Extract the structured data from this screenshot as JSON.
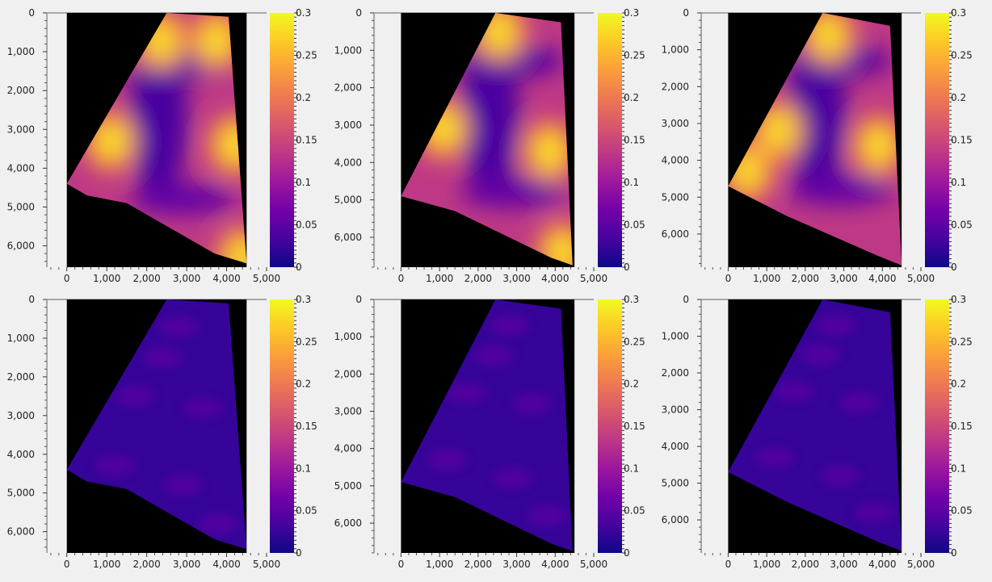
{
  "figure": {
    "colormap": "plasma",
    "frame_color": "#a8a8a8",
    "background_color": "#f0f0f0",
    "masked_color": "#000000",
    "grid": false
  },
  "chart_data": [
    {
      "type": "heatmap",
      "row": 1,
      "col": 1,
      "xlim": [
        -500,
        5000
      ],
      "ylim": [
        6550,
        0
      ],
      "x_ticks": [
        "0",
        "1,000",
        "2,000",
        "3,000",
        "4,000",
        "5,000"
      ],
      "x_tick_values": [
        0,
        1000,
        2000,
        3000,
        4000,
        5000
      ],
      "y_ticks": [
        "0",
        "1,000",
        "2,000",
        "3,000",
        "4,000",
        "5,000",
        "6,000"
      ],
      "y_tick_values": [
        0,
        1000,
        2000,
        3000,
        4000,
        5000,
        6000
      ],
      "colorbar": {
        "min": 0,
        "max": 0.3,
        "ticks": [
          "0",
          "0.05",
          "0.1",
          "0.15",
          "0.2",
          "0.25",
          "0.3"
        ],
        "tick_values": [
          0,
          0.05,
          0.1,
          0.15,
          0.2,
          0.25,
          0.3
        ]
      },
      "region_outline": [
        [
          2500,
          0
        ],
        [
          4050,
          100
        ],
        [
          4500,
          6450
        ],
        [
          3700,
          6200
        ],
        [
          1500,
          4900
        ],
        [
          500,
          4700
        ],
        [
          0,
          4400
        ]
      ],
      "intensity_level": "high",
      "hot_spots": [
        [
          2350,
          700
        ],
        [
          3750,
          700
        ],
        [
          1100,
          3300
        ],
        [
          4200,
          3400
        ],
        [
          4400,
          6300
        ]
      ]
    },
    {
      "type": "heatmap",
      "row": 1,
      "col": 2,
      "xlim": [
        -700,
        5000
      ],
      "ylim": [
        6800,
        0
      ],
      "x_ticks": [
        "0",
        "1,000",
        "2,000",
        "3,000",
        "4,000",
        "5,000"
      ],
      "x_tick_values": [
        0,
        1000,
        2000,
        3000,
        4000,
        5000
      ],
      "y_ticks": [
        "0",
        "1,000",
        "2,000",
        "3,000",
        "4,000",
        "5,000",
        "6,000"
      ],
      "y_tick_values": [
        0,
        1000,
        2000,
        3000,
        4000,
        5000,
        6000
      ],
      "colorbar": {
        "min": 0,
        "max": 0.3,
        "ticks": [
          "0",
          "0.05",
          "0.1",
          "0.15",
          "0.2",
          "0.25",
          "0.3"
        ],
        "tick_values": [
          0,
          0.05,
          0.1,
          0.15,
          0.2,
          0.25,
          0.3
        ]
      },
      "region_outline": [
        [
          2450,
          0
        ],
        [
          4150,
          250
        ],
        [
          4450,
          6750
        ],
        [
          3900,
          6550
        ],
        [
          1400,
          5300
        ],
        [
          0,
          4900
        ]
      ],
      "intensity_level": "high",
      "hot_spots": [
        [
          2550,
          500
        ],
        [
          1100,
          3100
        ],
        [
          3850,
          3700
        ],
        [
          4200,
          6400
        ]
      ]
    },
    {
      "type": "heatmap",
      "row": 1,
      "col": 3,
      "xlim": [
        -700,
        5000
      ],
      "ylim": [
        6900,
        0
      ],
      "x_ticks": [
        "0",
        "1,000",
        "2,000",
        "3,000",
        "4,000",
        "5,000"
      ],
      "x_tick_values": [
        0,
        1000,
        2000,
        3000,
        4000,
        5000
      ],
      "y_ticks": [
        "0",
        "1,000",
        "2,000",
        "3,000",
        "4,000",
        "5,000",
        "6,000"
      ],
      "y_tick_values": [
        0,
        1000,
        2000,
        3000,
        4000,
        5000,
        6000
      ],
      "colorbar": {
        "min": 0,
        "max": 0.3,
        "ticks": [
          "0",
          "0.05",
          "0.1",
          "0.15",
          "0.2",
          "0.25",
          "0.3"
        ],
        "tick_values": [
          0,
          0.05,
          0.1,
          0.15,
          0.2,
          0.25,
          0.3
        ]
      },
      "region_outline": [
        [
          2450,
          0
        ],
        [
          4200,
          350
        ],
        [
          4500,
          6850
        ],
        [
          3900,
          6600
        ],
        [
          1500,
          5500
        ],
        [
          0,
          4700
        ]
      ],
      "intensity_level": "high",
      "hot_spots": [
        [
          2600,
          600
        ],
        [
          1300,
          3200
        ],
        [
          3900,
          3600
        ],
        [
          500,
          4300
        ]
      ]
    },
    {
      "type": "heatmap",
      "row": 2,
      "col": 1,
      "xlim": [
        -500,
        5000
      ],
      "ylim": [
        6550,
        0
      ],
      "x_ticks": [
        "0",
        "1,000",
        "2,000",
        "3,000",
        "4,000",
        "5,000"
      ],
      "x_tick_values": [
        0,
        1000,
        2000,
        3000,
        4000,
        5000
      ],
      "y_ticks": [
        "0",
        "1,000",
        "2,000",
        "3,000",
        "4,000",
        "5,000",
        "6,000"
      ],
      "y_tick_values": [
        0,
        1000,
        2000,
        3000,
        4000,
        5000,
        6000
      ],
      "colorbar": {
        "min": 0,
        "max": 0.3,
        "ticks": [
          "0",
          "0.05",
          "0.1",
          "0.15",
          "0.2",
          "0.25",
          "0.3"
        ],
        "tick_values": [
          0,
          0.05,
          0.1,
          0.15,
          0.2,
          0.25,
          0.3
        ]
      },
      "region_outline": [
        [
          2500,
          0
        ],
        [
          4050,
          100
        ],
        [
          4500,
          6450
        ],
        [
          3700,
          6200
        ],
        [
          1500,
          4900
        ],
        [
          500,
          4700
        ],
        [
          0,
          4400
        ]
      ],
      "intensity_level": "low",
      "hot_spots": []
    },
    {
      "type": "heatmap",
      "row": 2,
      "col": 2,
      "xlim": [
        -700,
        5000
      ],
      "ylim": [
        6800,
        0
      ],
      "x_ticks": [
        "0",
        "1,000",
        "2,000",
        "3,000",
        "4,000",
        "5,000"
      ],
      "x_tick_values": [
        0,
        1000,
        2000,
        3000,
        4000,
        5000
      ],
      "y_ticks": [
        "0",
        "1,000",
        "2,000",
        "3,000",
        "4,000",
        "5,000",
        "6,000"
      ],
      "y_tick_values": [
        0,
        1000,
        2000,
        3000,
        4000,
        5000,
        6000
      ],
      "colorbar": {
        "min": 0,
        "max": 0.3,
        "ticks": [
          "0",
          "0.05",
          "0.1",
          "0.15",
          "0.2",
          "0.25",
          "0.3"
        ],
        "tick_values": [
          0,
          0.05,
          0.1,
          0.15,
          0.2,
          0.25,
          0.3
        ]
      },
      "region_outline": [
        [
          2450,
          0
        ],
        [
          4150,
          250
        ],
        [
          4450,
          6750
        ],
        [
          3900,
          6550
        ],
        [
          1400,
          5300
        ],
        [
          0,
          4900
        ]
      ],
      "intensity_level": "low",
      "hot_spots": []
    },
    {
      "type": "heatmap",
      "row": 2,
      "col": 3,
      "xlim": [
        -700,
        5000
      ],
      "ylim": [
        6900,
        0
      ],
      "x_ticks": [
        "0",
        "1,000",
        "2,000",
        "3,000",
        "4,000",
        "5,000"
      ],
      "x_tick_values": [
        0,
        1000,
        2000,
        3000,
        4000,
        5000
      ],
      "y_ticks": [
        "0",
        "1,000",
        "2,000",
        "3,000",
        "4,000",
        "5,000",
        "6,000"
      ],
      "y_tick_values": [
        0,
        1000,
        2000,
        3000,
        4000,
        5000,
        6000
      ],
      "colorbar": {
        "min": 0,
        "max": 0.3,
        "ticks": [
          "0",
          "0.05",
          "0.1",
          "0.15",
          "0.2",
          "0.25",
          "0.3"
        ],
        "tick_values": [
          0,
          0.05,
          0.1,
          0.15,
          0.2,
          0.25,
          0.3
        ]
      },
      "region_outline": [
        [
          2450,
          0
        ],
        [
          4200,
          350
        ],
        [
          4500,
          6850
        ],
        [
          3900,
          6600
        ],
        [
          1500,
          5500
        ],
        [
          0,
          4700
        ]
      ],
      "intensity_level": "low",
      "hot_spots": []
    }
  ]
}
